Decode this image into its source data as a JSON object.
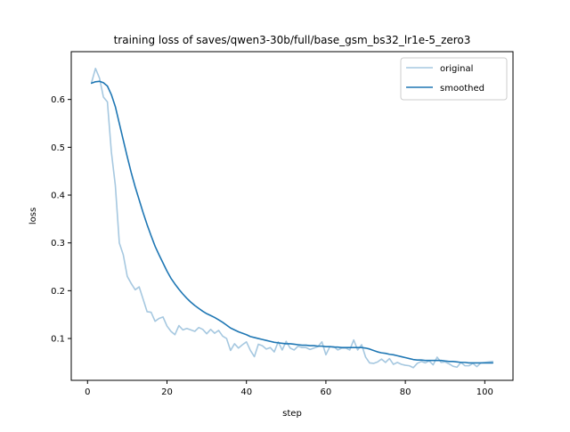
{
  "chart_data": {
    "type": "line",
    "title": "training loss of saves/qwen3-30b/full/base_gsm_bs32_lr1e-5_zero3",
    "xlabel": "step",
    "ylabel": "loss",
    "xlim": [
      -4.1,
      107.1
    ],
    "ylim": [
      0.0125,
      0.7
    ],
    "x_ticks": [
      0,
      20,
      40,
      60,
      80,
      100
    ],
    "y_ticks": [
      0.1,
      0.2,
      0.3,
      0.4,
      0.5,
      0.6
    ],
    "legend_position": "top-right",
    "grid": false,
    "series": [
      {
        "name": "original",
        "color": "#a6c8e0",
        "x": [
          1,
          2,
          3,
          4,
          5,
          6,
          7,
          8,
          9,
          10,
          11,
          12,
          13,
          14,
          15,
          16,
          17,
          18,
          19,
          20,
          21,
          22,
          23,
          24,
          25,
          26,
          27,
          28,
          29,
          30,
          31,
          32,
          33,
          34,
          35,
          36,
          37,
          38,
          39,
          40,
          41,
          42,
          43,
          44,
          45,
          46,
          47,
          48,
          49,
          50,
          51,
          52,
          53,
          54,
          55,
          56,
          57,
          58,
          59,
          60,
          61,
          62,
          63,
          64,
          65,
          66,
          67,
          68,
          69,
          70,
          71,
          72,
          73,
          74,
          75,
          76,
          77,
          78,
          79,
          80,
          81,
          82,
          83,
          84,
          85,
          86,
          87,
          88,
          89,
          90,
          91,
          92,
          93,
          94,
          95,
          96,
          97,
          98,
          99,
          100,
          101,
          102
        ],
        "y": [
          0.635,
          0.665,
          0.645,
          0.605,
          0.595,
          0.49,
          0.42,
          0.3,
          0.275,
          0.23,
          0.215,
          0.202,
          0.208,
          0.182,
          0.156,
          0.155,
          0.136,
          0.142,
          0.145,
          0.126,
          0.115,
          0.108,
          0.127,
          0.118,
          0.121,
          0.118,
          0.115,
          0.123,
          0.119,
          0.11,
          0.119,
          0.111,
          0.117,
          0.105,
          0.1,
          0.075,
          0.089,
          0.08,
          0.087,
          0.093,
          0.075,
          0.062,
          0.088,
          0.085,
          0.078,
          0.081,
          0.072,
          0.093,
          0.076,
          0.094,
          0.08,
          0.076,
          0.084,
          0.081,
          0.081,
          0.077,
          0.08,
          0.083,
          0.093,
          0.066,
          0.083,
          0.083,
          0.076,
          0.08,
          0.08,
          0.076,
          0.097,
          0.076,
          0.087,
          0.061,
          0.049,
          0.048,
          0.051,
          0.057,
          0.05,
          0.058,
          0.046,
          0.05,
          0.046,
          0.044,
          0.043,
          0.039,
          0.048,
          0.052,
          0.049,
          0.053,
          0.045,
          0.061,
          0.05,
          0.051,
          0.047,
          0.042,
          0.04,
          0.05,
          0.043,
          0.043,
          0.048,
          0.041,
          0.049,
          0.05,
          0.051,
          0.052
        ]
      },
      {
        "name": "smoothed",
        "color": "#1f77b4",
        "x": [
          1,
          2,
          3,
          4,
          5,
          6,
          7,
          8,
          9,
          10,
          11,
          12,
          13,
          14,
          15,
          16,
          17,
          18,
          19,
          20,
          21,
          22,
          23,
          24,
          25,
          26,
          27,
          28,
          29,
          30,
          31,
          32,
          33,
          34,
          35,
          36,
          37,
          38,
          39,
          40,
          41,
          42,
          43,
          44,
          45,
          46,
          47,
          48,
          49,
          50,
          51,
          52,
          53,
          54,
          55,
          56,
          57,
          58,
          59,
          60,
          61,
          62,
          63,
          64,
          65,
          66,
          67,
          68,
          69,
          70,
          71,
          72,
          73,
          74,
          75,
          76,
          77,
          78,
          79,
          80,
          81,
          82,
          83,
          84,
          85,
          86,
          87,
          88,
          89,
          90,
          91,
          92,
          93,
          94,
          95,
          96,
          97,
          98,
          99,
          100,
          101,
          102
        ],
        "y": [
          0.634,
          0.637,
          0.638,
          0.635,
          0.628,
          0.61,
          0.585,
          0.55,
          0.515,
          0.48,
          0.447,
          0.417,
          0.39,
          0.363,
          0.338,
          0.315,
          0.293,
          0.275,
          0.258,
          0.241,
          0.226,
          0.214,
          0.203,
          0.193,
          0.184,
          0.176,
          0.169,
          0.163,
          0.157,
          0.152,
          0.148,
          0.144,
          0.139,
          0.134,
          0.128,
          0.122,
          0.118,
          0.114,
          0.111,
          0.108,
          0.104,
          0.102,
          0.1,
          0.098,
          0.096,
          0.094,
          0.092,
          0.091,
          0.09,
          0.089,
          0.089,
          0.088,
          0.087,
          0.086,
          0.086,
          0.085,
          0.085,
          0.084,
          0.084,
          0.083,
          0.083,
          0.082,
          0.082,
          0.081,
          0.081,
          0.081,
          0.081,
          0.081,
          0.081,
          0.08,
          0.078,
          0.075,
          0.072,
          0.07,
          0.069,
          0.067,
          0.066,
          0.064,
          0.062,
          0.06,
          0.058,
          0.056,
          0.055,
          0.055,
          0.054,
          0.054,
          0.054,
          0.054,
          0.054,
          0.053,
          0.052,
          0.052,
          0.051,
          0.05,
          0.05,
          0.049,
          0.049,
          0.049,
          0.049,
          0.049,
          0.049,
          0.049
        ]
      }
    ]
  }
}
